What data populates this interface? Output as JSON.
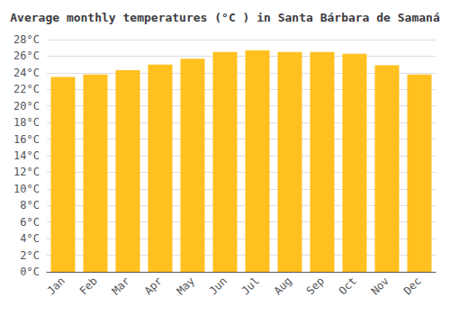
{
  "chart_data": {
    "type": "bar",
    "title": "Average monthly temperatures (°C ) in Santa Bárbara de Samaná",
    "categories": [
      "Jan",
      "Feb",
      "Mar",
      "Apr",
      "May",
      "Jun",
      "Jul",
      "Aug",
      "Sep",
      "Oct",
      "Nov",
      "Dec"
    ],
    "values": [
      23.5,
      23.8,
      24.3,
      25.0,
      25.7,
      26.5,
      26.7,
      26.5,
      26.5,
      26.3,
      24.9,
      23.8
    ],
    "color": "#FFC020",
    "ylim": [
      0,
      28
    ],
    "yticks": [
      {
        "value": 0,
        "label": "0°C"
      },
      {
        "value": 2,
        "label": "2°C"
      },
      {
        "value": 4,
        "label": "4°C"
      },
      {
        "value": 6,
        "label": "6°C"
      },
      {
        "value": 8,
        "label": "8°C"
      },
      {
        "value": 10,
        "label": "10°C"
      },
      {
        "value": 12,
        "label": "12°C"
      },
      {
        "value": 14,
        "label": "14°C"
      },
      {
        "value": 16,
        "label": "16°C"
      },
      {
        "value": 18,
        "label": "18°C"
      },
      {
        "value": 20,
        "label": "20°C"
      },
      {
        "value": 22,
        "label": "22°C"
      },
      {
        "value": 24,
        "label": "24°C"
      },
      {
        "value": 26,
        "label": "26°C"
      },
      {
        "value": 28,
        "label": "28°C"
      }
    ],
    "grid": true
  }
}
